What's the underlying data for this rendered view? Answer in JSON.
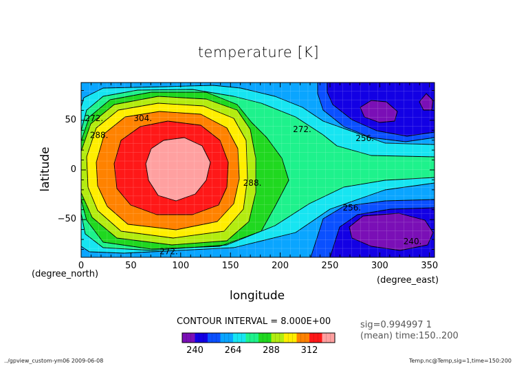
{
  "chart_data": {
    "type": "heatmap",
    "title": "temperature [K]",
    "xlabel": "longitude",
    "ylabel": "latitude",
    "x_unit": "(degree_east)",
    "y_unit": "(degree_north)",
    "xlim": [
      0,
      355
    ],
    "ylim": [
      -88,
      88
    ],
    "x_ticks": [
      0,
      50,
      100,
      150,
      200,
      250,
      300,
      350
    ],
    "x_tick_labels": [
      "0",
      "50",
      "100",
      "150",
      "200",
      "250",
      "300",
      "350"
    ],
    "y_ticks": [
      50,
      0,
      -50
    ],
    "y_tick_labels": [
      "50",
      "0",
      "−50"
    ],
    "grid": true,
    "contour_interval_text": "CONTOUR INTERVAL = 8.000E+00",
    "color_levels": [
      232,
      240,
      248,
      256,
      264,
      272,
      280,
      288,
      296,
      304,
      312,
      320
    ],
    "colorbar_labels": [
      "240",
      "264",
      "288",
      "312"
    ],
    "contour_labels": [
      {
        "text": "272.",
        "lon": 13,
        "lat": 52
      },
      {
        "text": "288.",
        "lon": 18,
        "lat": 35
      },
      {
        "text": "304.",
        "lon": 62,
        "lat": 52
      },
      {
        "text": "272.",
        "lon": 222,
        "lat": 41
      },
      {
        "text": "256.",
        "lon": 285,
        "lat": 32
      },
      {
        "text": "288.",
        "lon": 172,
        "lat": -13
      },
      {
        "text": "256.",
        "lon": 272,
        "lat": -38
      },
      {
        "text": "272.",
        "lon": 88,
        "lat": -82
      },
      {
        "text": "240.",
        "lon": 333,
        "lat": -72
      }
    ],
    "side_text_1": "sig=0.994997 1",
    "side_text_2": "(mean) time:150..200",
    "footer_left": "../gpview_custom-ym06  2009-06-08",
    "footer_right": "Temp.nc@Temp,sig=1,time=150:200",
    "colors": {
      "232": "#7a0fb6",
      "240": "#1300e4",
      "248": "#0a50ff",
      "256": "#0aa5ff",
      "264": "#17e5f1",
      "272": "#1ef28c",
      "280": "#20d820",
      "288": "#b3ec10",
      "296": "#ffee00",
      "304": "#ff8200",
      "312": "#ff1818",
      "320": "#ffa0a0"
    }
  }
}
